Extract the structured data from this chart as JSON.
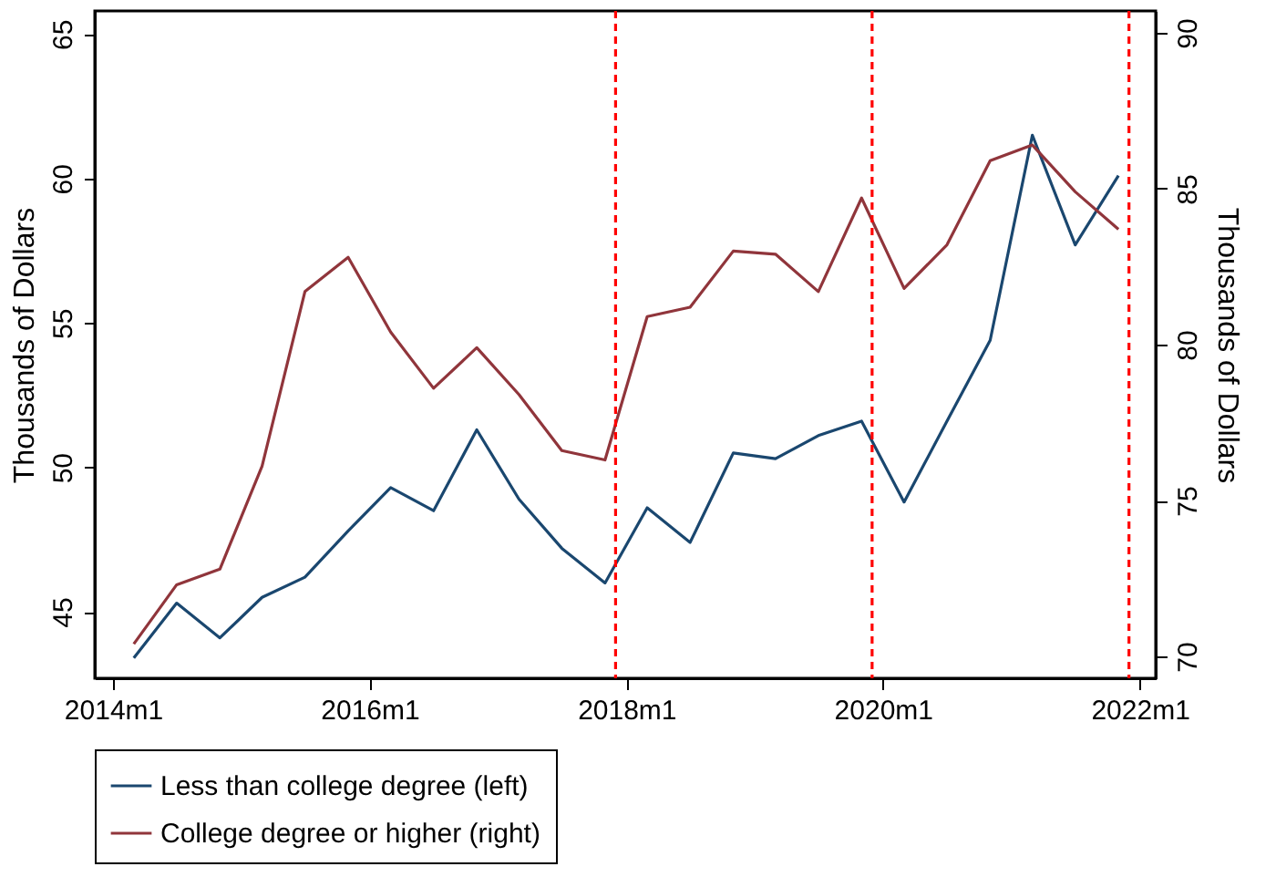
{
  "chart_data": {
    "type": "line",
    "ylabel": "Thousands of Dollars",
    "y2label": "Thousands of Dollars",
    "x": [
      "2014-03",
      "2014-07",
      "2014-11",
      "2015-03",
      "2015-07",
      "2015-11",
      "2016-03",
      "2016-07",
      "2016-11",
      "2017-03",
      "2017-07",
      "2017-11",
      "2018-03",
      "2018-07",
      "2018-11",
      "2019-03",
      "2019-07",
      "2019-11",
      "2020-03",
      "2020-07",
      "2020-11",
      "2021-03",
      "2021-07",
      "2021-11"
    ],
    "series": [
      {
        "name": "Less than college degree (left)",
        "color": "#1a476f",
        "values": [
          43.4,
          45.3,
          44.1,
          45.5,
          46.2,
          47.8,
          49.3,
          48.5,
          51.3,
          48.9,
          47.2,
          46.0,
          48.6,
          47.4,
          50.5,
          50.3,
          51.1,
          51.6,
          48.8,
          51.6,
          54.4,
          61.5,
          57.7,
          60.1
        ]
      },
      {
        "name": "College degree or higher (right)",
        "color": "#90353b",
        "axis": "y2",
        "values": [
          70.4,
          72.3,
          72.8,
          76.1,
          81.7,
          82.8,
          80.4,
          78.6,
          79.9,
          78.4,
          76.6,
          76.3,
          80.9,
          81.2,
          83.0,
          82.9,
          81.7,
          84.7,
          81.8,
          83.2,
          85.9,
          86.4,
          84.9,
          83.7
        ]
      }
    ],
    "xlim": [
      "2013-11-10",
      "2022-02-15"
    ],
    "xticks": [
      {
        "value": "2014-01",
        "label": "2014m1"
      },
      {
        "value": "2016-01",
        "label": "2016m1"
      },
      {
        "value": "2018-01",
        "label": "2018m1"
      },
      {
        "value": "2020-01",
        "label": "2020m1"
      },
      {
        "value": "2022-01",
        "label": "2022m1"
      }
    ],
    "ylim": [
      42.7,
      65.8
    ],
    "yticks": [
      45,
      50,
      55,
      60,
      65
    ],
    "y2lim": [
      69.3,
      90.7
    ],
    "y2ticks": [
      70,
      75,
      80,
      85,
      90
    ],
    "ref_lines": [
      {
        "axis": "x",
        "value": "2017-12",
        "color": "#ff0000",
        "line_style": "dashed"
      },
      {
        "axis": "x",
        "value": "2019-12",
        "color": "#ff0000",
        "line_style": "dashed"
      },
      {
        "axis": "x",
        "value": "2021-12",
        "color": "#ff0000",
        "line_style": "dashed"
      }
    ],
    "grid": false,
    "legend": "bottom",
    "line_style": "solid",
    "marker": "none"
  }
}
